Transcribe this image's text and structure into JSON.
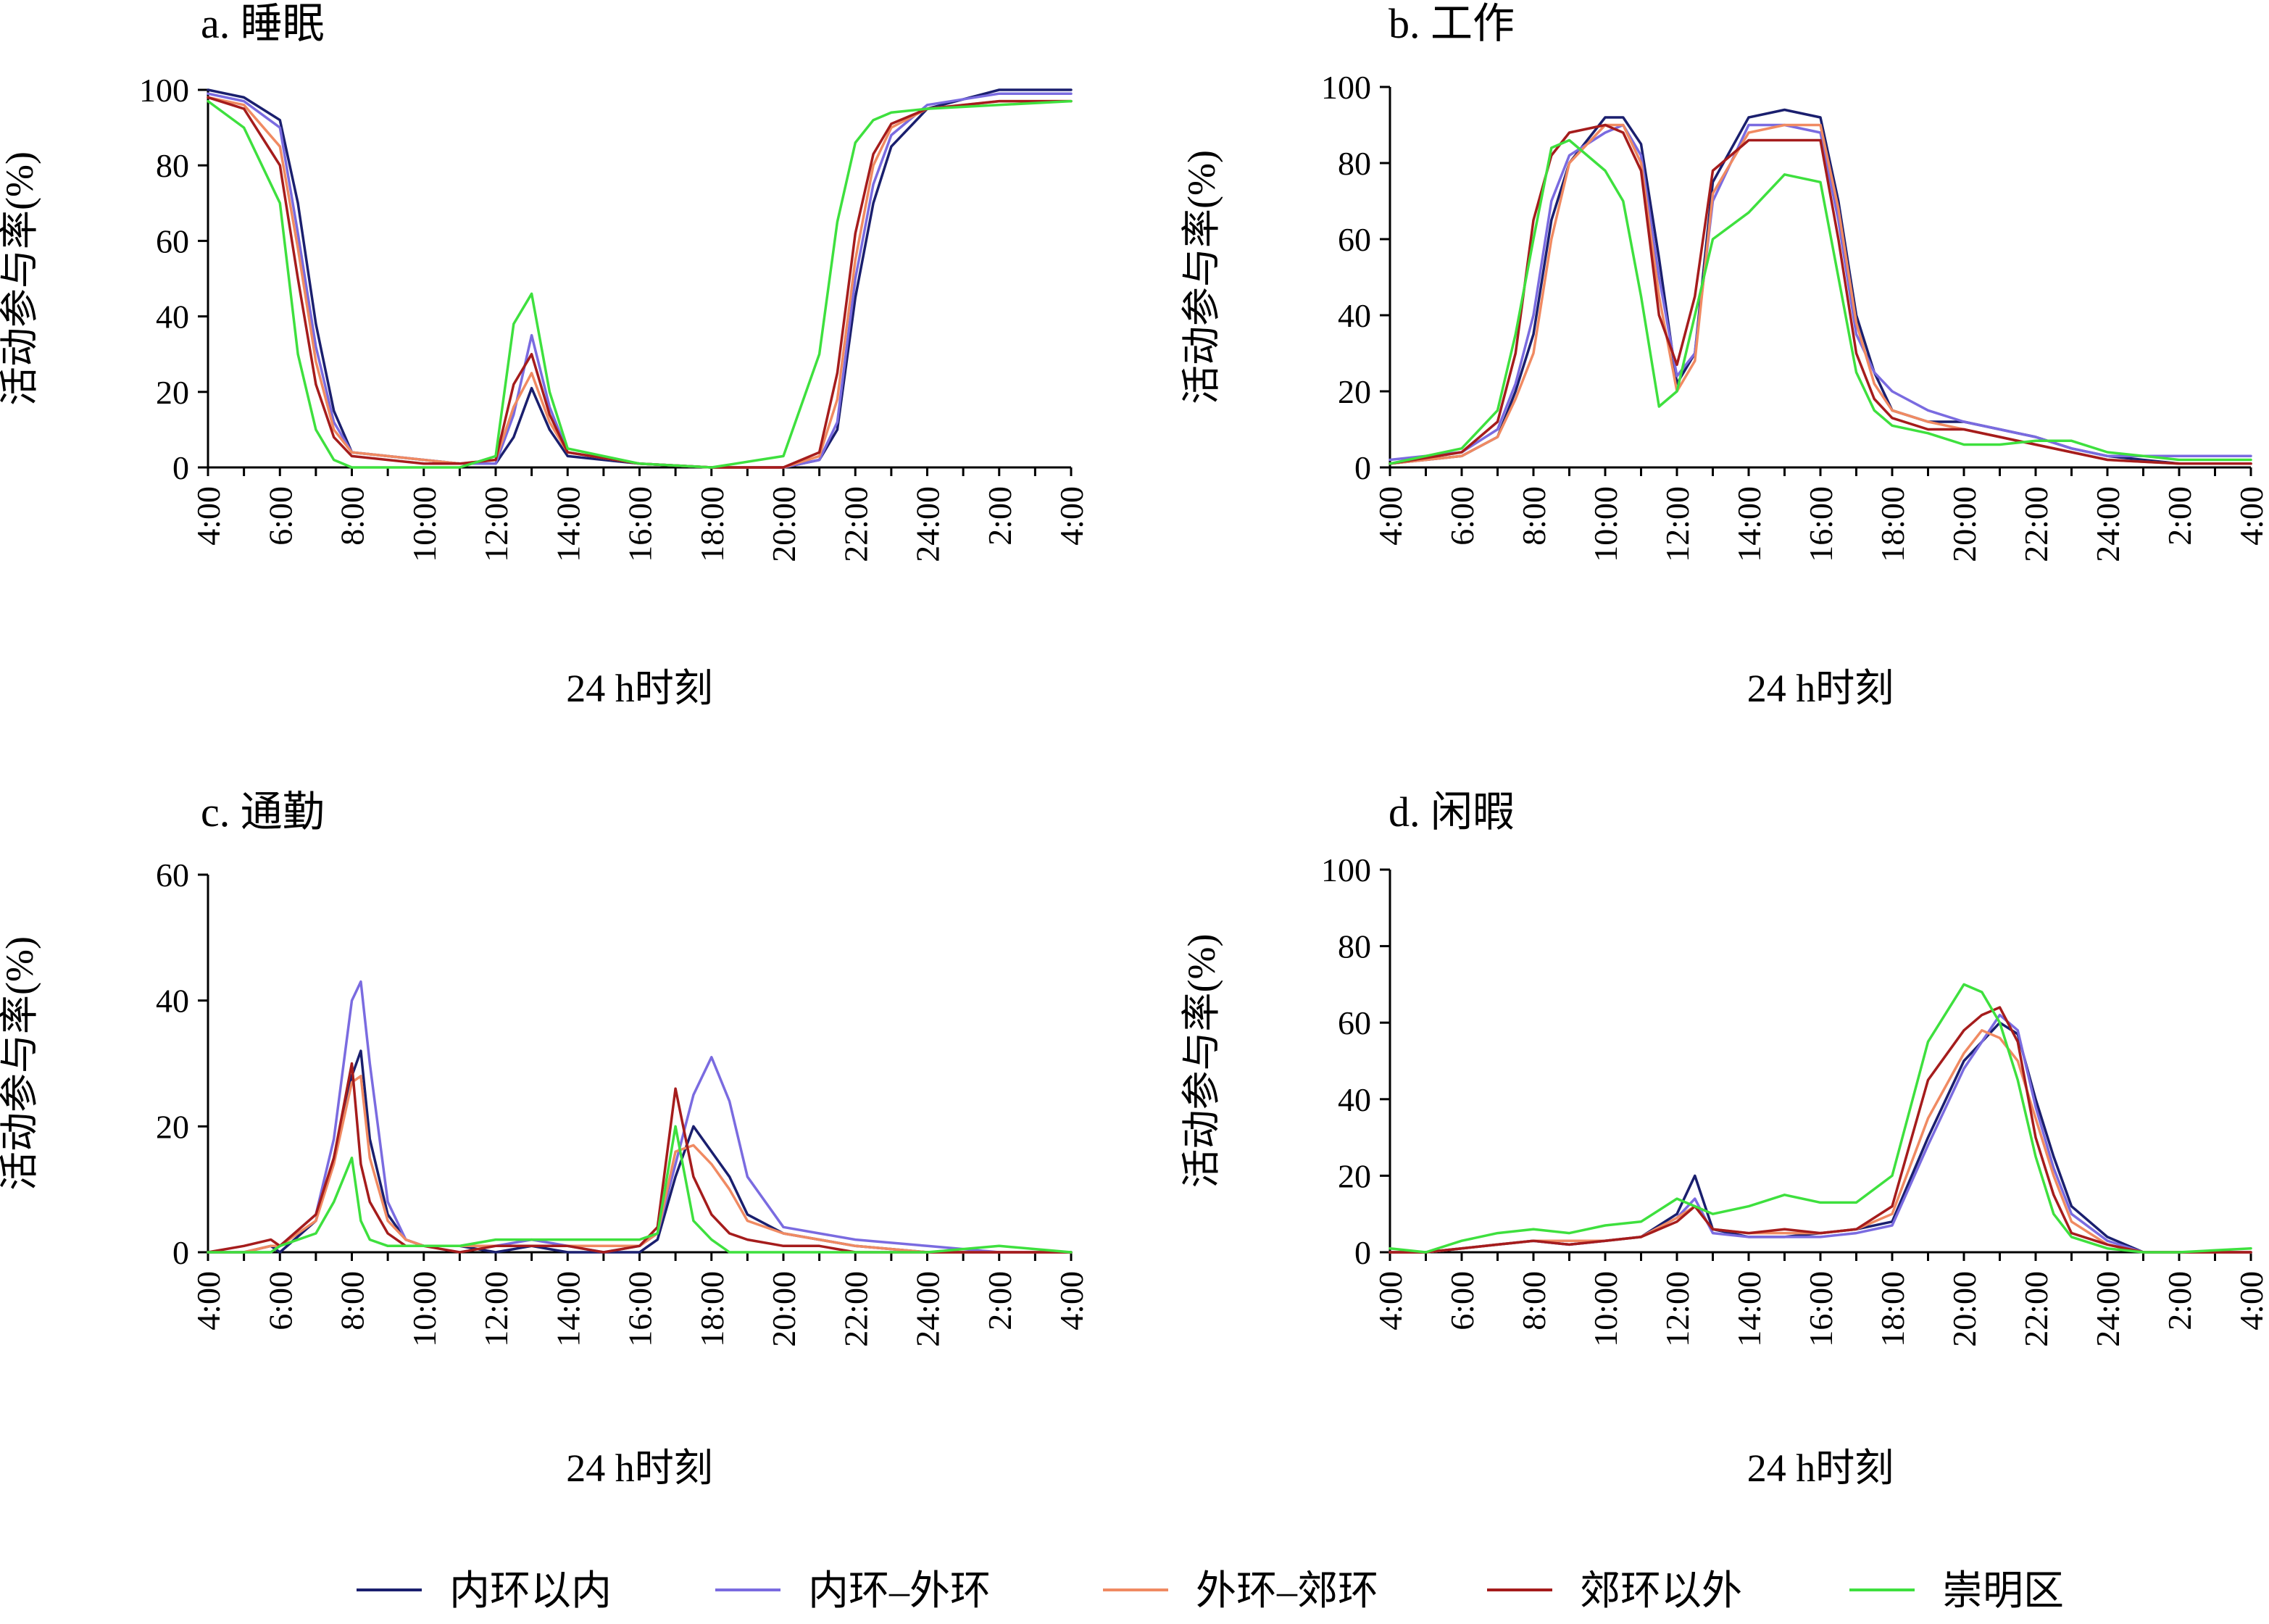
{
  "x_ticks": [
    "4:00",
    "6:00",
    "8:00",
    "10:00",
    "12:00",
    "14:00",
    "16:00",
    "18:00",
    "20:00",
    "22:00",
    "24:00",
    "2:00",
    "4:00"
  ],
  "xlabel": "24 h时刻",
  "ylabel": "活动参与率(%)",
  "legend": [
    {
      "name": "内环以内",
      "color": "#1a1f6e"
    },
    {
      "name": "内环–外环",
      "color": "#7a6be0"
    },
    {
      "name": "外环–郊环",
      "color": "#f08a62"
    },
    {
      "name": "郊环以外",
      "color": "#a51c1c"
    },
    {
      "name": "崇明区",
      "color": "#3ee03e"
    }
  ],
  "chart_data": [
    {
      "type": "line",
      "title": "a. 睡眠",
      "xlabel": "24 h时刻",
      "ylabel": "活动参与率(%)",
      "ylim": [
        0,
        100
      ],
      "yticks": [
        "0",
        "20",
        "40",
        "60",
        "80",
        "100"
      ],
      "x_hours": [
        4,
        5,
        6,
        6.5,
        7,
        7.5,
        8,
        9,
        10,
        11,
        12,
        12.5,
        13,
        13.5,
        14,
        16,
        18,
        20,
        21,
        21.5,
        22,
        22.5,
        23,
        24,
        26,
        28
      ],
      "series": [
        {
          "name": "内环以内",
          "values": [
            100,
            98,
            92,
            70,
            38,
            15,
            4,
            3,
            2,
            1,
            1,
            8,
            21,
            10,
            3,
            1,
            0,
            0,
            2,
            10,
            45,
            70,
            85,
            95,
            100,
            100
          ]
        },
        {
          "name": "内环–外环",
          "values": [
            99,
            97,
            90,
            62,
            32,
            12,
            4,
            3,
            2,
            1,
            1,
            14,
            35,
            16,
            4,
            1,
            0,
            0,
            2,
            12,
            50,
            75,
            88,
            96,
            99,
            99
          ]
        },
        {
          "name": "外环–郊环",
          "values": [
            98,
            96,
            85,
            58,
            28,
            10,
            4,
            3,
            2,
            1,
            2,
            16,
            25,
            12,
            4,
            1,
            0,
            0,
            3,
            18,
            55,
            80,
            90,
            95,
            97,
            97
          ]
        },
        {
          "name": "郊环以外",
          "values": [
            98,
            95,
            80,
            50,
            22,
            8,
            3,
            2,
            1,
            1,
            2,
            22,
            30,
            14,
            4,
            1,
            0,
            0,
            4,
            25,
            62,
            83,
            91,
            95,
            97,
            97
          ]
        },
        {
          "name": "崇明区",
          "values": [
            97,
            90,
            70,
            30,
            10,
            2,
            0,
            0,
            0,
            0,
            3,
            38,
            46,
            20,
            5,
            1,
            0,
            3,
            30,
            65,
            86,
            92,
            94,
            95,
            96,
            97
          ]
        }
      ]
    },
    {
      "type": "line",
      "title": "b. 工作",
      "xlabel": "24 h时刻",
      "ylabel": "活动参与率(%)",
      "ylim": [
        0,
        100
      ],
      "yticks": [
        "0",
        "20",
        "40",
        "60",
        "80",
        "100"
      ],
      "x_hours": [
        4,
        6,
        7,
        7.5,
        8,
        8.5,
        9,
        10,
        10.5,
        11,
        11.5,
        12,
        12.5,
        13,
        14,
        15,
        16,
        16.5,
        17,
        17.5,
        18,
        19,
        20,
        21,
        22,
        23,
        24,
        26,
        28
      ],
      "series": [
        {
          "name": "内环以内",
          "values": [
            1,
            3,
            8,
            20,
            35,
            65,
            80,
            92,
            92,
            85,
            55,
            22,
            30,
            75,
            92,
            94,
            92,
            70,
            40,
            25,
            15,
            12,
            12,
            10,
            8,
            5,
            3,
            1,
            1
          ]
        },
        {
          "name": "内环–外环",
          "values": [
            2,
            4,
            10,
            22,
            40,
            70,
            82,
            88,
            90,
            82,
            50,
            24,
            30,
            70,
            90,
            90,
            88,
            65,
            35,
            25,
            20,
            15,
            12,
            10,
            8,
            5,
            3,
            3,
            3
          ]
        },
        {
          "name": "外环–郊环",
          "values": [
            1,
            3,
            8,
            18,
            30,
            60,
            80,
            90,
            90,
            80,
            45,
            20,
            28,
            72,
            88,
            90,
            90,
            68,
            38,
            22,
            15,
            12,
            10,
            8,
            6,
            4,
            2,
            1,
            1
          ]
        },
        {
          "name": "郊环以外",
          "values": [
            1,
            4,
            12,
            30,
            65,
            82,
            88,
            90,
            88,
            78,
            40,
            27,
            45,
            78,
            86,
            86,
            86,
            60,
            30,
            18,
            13,
            10,
            10,
            8,
            6,
            4,
            2,
            1,
            1
          ]
        },
        {
          "name": "崇明区",
          "values": [
            1,
            5,
            15,
            35,
            60,
            84,
            86,
            78,
            70,
            45,
            16,
            20,
            40,
            60,
            67,
            77,
            75,
            50,
            25,
            15,
            11,
            9,
            6,
            6,
            7,
            7,
            4,
            2,
            2
          ]
        }
      ]
    },
    {
      "type": "line",
      "title": "c. 通勤",
      "xlabel": "24 h时刻",
      "ylabel": "活动参与率(%)",
      "ylim": [
        0,
        60
      ],
      "yticks": [
        "0",
        "20",
        "40",
        "60"
      ],
      "x_hours": [
        4,
        5,
        5.75,
        6,
        7,
        7.5,
        8,
        8.25,
        8.5,
        9,
        9.5,
        10,
        11,
        12,
        13,
        14,
        15,
        16,
        16.5,
        17,
        17.5,
        18,
        18.5,
        19,
        20,
        21,
        22,
        24,
        26,
        28
      ],
      "series": [
        {
          "name": "内环以内",
          "values": [
            0,
            0,
            1,
            0,
            5,
            15,
            28,
            32,
            18,
            6,
            2,
            1,
            1,
            0,
            1,
            0,
            0,
            0,
            2,
            12,
            20,
            16,
            12,
            6,
            3,
            2,
            1,
            0,
            0,
            0
          ]
        },
        {
          "name": "内环–外环",
          "values": [
            0,
            0,
            0,
            1,
            6,
            18,
            40,
            43,
            30,
            8,
            2,
            1,
            1,
            1,
            2,
            1,
            0,
            1,
            3,
            14,
            25,
            31,
            24,
            12,
            4,
            3,
            2,
            1,
            0,
            0
          ]
        },
        {
          "name": "外环–郊环",
          "values": [
            0,
            0,
            1,
            1,
            5,
            14,
            27,
            28,
            15,
            5,
            2,
            1,
            1,
            1,
            1,
            1,
            1,
            1,
            3,
            16,
            17,
            14,
            10,
            5,
            3,
            2,
            1,
            0,
            0,
            0
          ]
        },
        {
          "name": "郊环以外",
          "values": [
            0,
            1,
            2,
            1,
            6,
            15,
            30,
            14,
            8,
            3,
            1,
            1,
            0,
            1,
            1,
            1,
            0,
            1,
            4,
            26,
            12,
            6,
            3,
            2,
            1,
            1,
            0,
            0,
            0,
            0
          ]
        },
        {
          "name": "崇明区",
          "values": [
            0,
            0,
            0,
            1,
            3,
            8,
            15,
            5,
            2,
            1,
            1,
            1,
            1,
            2,
            2,
            2,
            2,
            2,
            3,
            20,
            5,
            2,
            0,
            0,
            0,
            0,
            0,
            0,
            1,
            0
          ]
        }
      ]
    },
    {
      "type": "line",
      "title": "d. 闲暇",
      "xlabel": "24 h时刻",
      "ylabel": "活动参与率(%)",
      "ylim": [
        0,
        100
      ],
      "yticks": [
        "0",
        "20",
        "40",
        "60",
        "80",
        "100"
      ],
      "x_hours": [
        4,
        5,
        6,
        7,
        8,
        9,
        10,
        11,
        12,
        12.5,
        13,
        14,
        15,
        16,
        17,
        18,
        19,
        20,
        20.5,
        21,
        21.5,
        22,
        22.5,
        23,
        24,
        25,
        26,
        28
      ],
      "series": [
        {
          "name": "内环以内",
          "values": [
            0,
            0,
            1,
            2,
            3,
            2,
            3,
            4,
            10,
            20,
            6,
            4,
            4,
            5,
            6,
            8,
            30,
            50,
            55,
            60,
            57,
            40,
            25,
            12,
            4,
            0,
            0,
            0
          ]
        },
        {
          "name": "内环–外环",
          "values": [
            0,
            0,
            1,
            2,
            3,
            2,
            3,
            4,
            9,
            14,
            5,
            4,
            4,
            4,
            5,
            7,
            28,
            48,
            55,
            62,
            58,
            38,
            22,
            10,
            3,
            0,
            0,
            0
          ]
        },
        {
          "name": "外环–郊环",
          "values": [
            0,
            0,
            1,
            2,
            3,
            3,
            3,
            4,
            9,
            12,
            6,
            5,
            5,
            5,
            6,
            10,
            35,
            52,
            58,
            56,
            50,
            35,
            20,
            8,
            2,
            0,
            0,
            0
          ]
        },
        {
          "name": "郊环以外",
          "values": [
            0,
            0,
            1,
            2,
            3,
            2,
            3,
            4,
            8,
            12,
            6,
            5,
            6,
            5,
            6,
            12,
            45,
            58,
            62,
            64,
            55,
            30,
            15,
            5,
            2,
            0,
            0,
            0
          ]
        },
        {
          "name": "崇明区",
          "values": [
            1,
            0,
            3,
            5,
            6,
            5,
            7,
            8,
            14,
            12,
            10,
            12,
            15,
            13,
            13,
            20,
            55,
            70,
            68,
            60,
            45,
            25,
            10,
            4,
            1,
            0,
            0,
            1
          ]
        }
      ]
    }
  ]
}
